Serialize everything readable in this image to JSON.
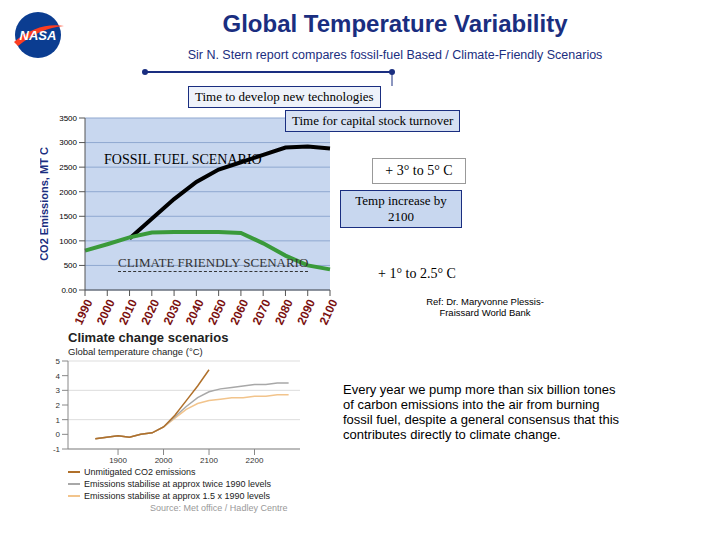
{
  "header": {
    "logo_text": "NASA",
    "title": "Global Temperature Variability",
    "subtitle": "Sir N. Stern report compares fossil-fuel Based / Climate-Friendly Scenarios"
  },
  "chart_data": [
    {
      "type": "line",
      "y_label": "CO2 Emissions, MT C",
      "categories": [
        "1990",
        "2000",
        "2010",
        "2020",
        "2030",
        "2040",
        "2050",
        "2060",
        "2070",
        "2080",
        "2090",
        "2100"
      ],
      "series": [
        {
          "name": "FOSSIL FUEL SCENARIO",
          "color": "#000000",
          "values": [
            null,
            null,
            1050,
            1450,
            1850,
            2200,
            2450,
            2600,
            2750,
            2900,
            2920,
            2880
          ]
        },
        {
          "name": "CLIMATE FRIENDLY SCENARIO",
          "color": "#3a9a3a",
          "values": [
            800,
            930,
            1070,
            1170,
            1180,
            1180,
            1180,
            1160,
            950,
            700,
            500,
            420
          ]
        }
      ],
      "ylim": [
        0,
        3500
      ],
      "yticks": [
        {
          "value": 0,
          "label": "0.00"
        },
        500,
        1000,
        1500,
        2000,
        2500,
        3000,
        3500
      ],
      "grid": true
    },
    {
      "type": "line",
      "title": "Climate change scenarios",
      "subtitle": "Global temperature change (°C)",
      "x": [
        1850,
        1875,
        1900,
        1925,
        1950,
        1975,
        2000,
        2025,
        2050,
        2075,
        2100,
        2125,
        2150,
        2175,
        2200,
        2225,
        2250,
        2275
      ],
      "series": [
        {
          "name": "Emissions stabilise at approx 1.5 x 1990 levels",
          "color": "#f2c48c",
          "values": [
            -0.3,
            -0.2,
            -0.1,
            -0.2,
            0.0,
            0.1,
            0.5,
            1.1,
            1.7,
            2.1,
            2.3,
            2.4,
            2.5,
            2.5,
            2.6,
            2.6,
            2.7,
            2.7
          ]
        },
        {
          "name": "Emissions stabilise at approx twice 1990 levels",
          "color": "#a8a8a8",
          "values": [
            -0.3,
            -0.2,
            -0.1,
            -0.2,
            0.0,
            0.1,
            0.5,
            1.2,
            1.9,
            2.5,
            2.9,
            3.1,
            3.2,
            3.3,
            3.4,
            3.4,
            3.5,
            3.5
          ]
        },
        {
          "name": "Unmitigated CO2 emissions",
          "color": "#b0702a",
          "values": [
            -0.3,
            -0.2,
            -0.1,
            -0.2,
            0.0,
            0.1,
            0.5,
            1.3,
            2.3,
            3.3,
            4.4,
            null,
            null,
            null,
            null,
            null,
            null,
            null
          ]
        }
      ],
      "xlim": [
        1790,
        2300
      ],
      "xticks": [
        1900,
        2000,
        2100,
        2200
      ],
      "ylim": [
        -1,
        5
      ],
      "yticks": [
        -1,
        0,
        1,
        2,
        3,
        4,
        5
      ],
      "grid": true,
      "legend": "bottom",
      "source": "Source: Met office / Hadley Centre"
    }
  ],
  "annotations": {
    "time_bars": [
      "Time to develop new technologies",
      "Time for capital stock turnover"
    ],
    "temp_fossil": "+ 3° to 5° C",
    "temp_note": "Temp increase by 2100",
    "temp_friendly": "+ 1° to 2.5° C",
    "reference": "Ref: Dr. Maryvonne Plessis-Fraissard World Bank",
    "paragraph": "Every year we pump more than six billion tones of carbon emissions into the air from burning fossil fuel, despite a general consensus that this contributes directly to climate change."
  }
}
